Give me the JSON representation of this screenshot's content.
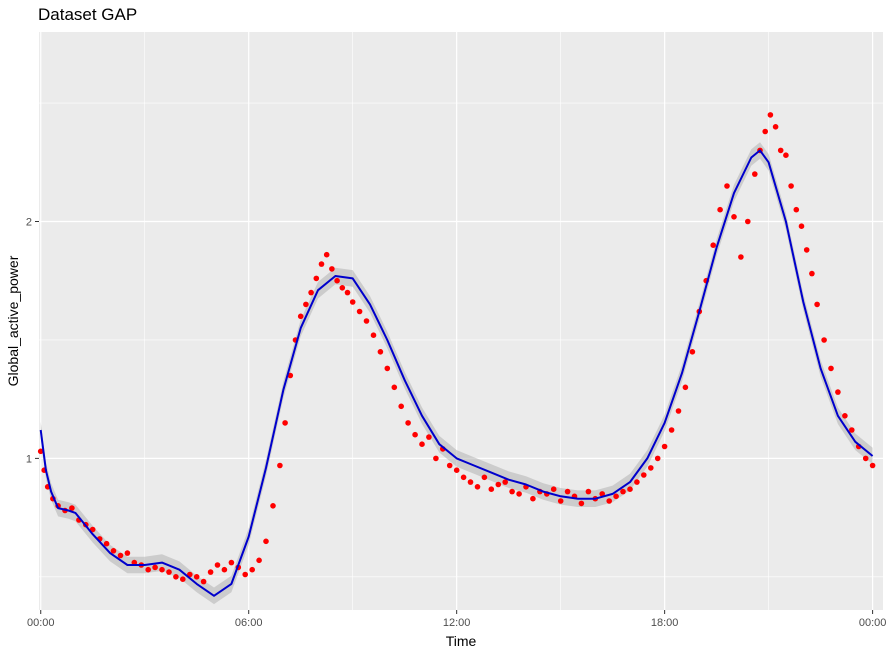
{
  "chart_data": {
    "type": "scatter",
    "title": "Dataset GAP",
    "xlabel": "Time",
    "ylabel": "Global_active_power",
    "xlim": [
      -0.05,
      24.3
    ],
    "ylim": [
      0.36,
      2.8
    ],
    "x_ticks": [
      {
        "value": 0,
        "label": "00:00"
      },
      {
        "value": 6,
        "label": "06:00"
      },
      {
        "value": 12,
        "label": "12:00"
      },
      {
        "value": 18,
        "label": "18:00"
      },
      {
        "value": 24,
        "label": "00:00"
      }
    ],
    "y_ticks": [
      {
        "value": 1,
        "label": "1"
      },
      {
        "value": 2,
        "label": "2"
      }
    ],
    "y_minor_grid": [
      0.5,
      1.5,
      2.5
    ],
    "grid": true,
    "colors": {
      "panel": "#ebebeb",
      "grid": "#ffffff",
      "points": "#ff0000",
      "smooth_line": "#0000cc",
      "ribbon": "#b3b3b3"
    },
    "series": [
      {
        "kind": "points",
        "x": [
          0.0,
          0.1,
          0.2,
          0.35,
          0.5,
          0.7,
          0.9,
          1.1,
          1.3,
          1.5,
          1.7,
          1.9,
          2.1,
          2.3,
          2.5,
          2.7,
          2.9,
          3.1,
          3.3,
          3.5,
          3.7,
          3.9,
          4.1,
          4.3,
          4.5,
          4.7,
          4.9,
          5.1,
          5.3,
          5.5,
          5.7,
          5.9,
          6.1,
          6.3,
          6.5,
          6.7,
          6.9,
          7.05,
          7.2,
          7.35,
          7.5,
          7.65,
          7.8,
          7.95,
          8.1,
          8.25,
          8.4,
          8.55,
          8.7,
          8.85,
          9.0,
          9.2,
          9.4,
          9.6,
          9.8,
          10.0,
          10.2,
          10.4,
          10.6,
          10.8,
          11.0,
          11.2,
          11.4,
          11.6,
          11.8,
          12.0,
          12.2,
          12.4,
          12.6,
          12.8,
          13.0,
          13.2,
          13.4,
          13.6,
          13.8,
          14.0,
          14.2,
          14.4,
          14.6,
          14.8,
          15.0,
          15.2,
          15.4,
          15.6,
          15.8,
          16.0,
          16.2,
          16.4,
          16.6,
          16.8,
          17.0,
          17.2,
          17.4,
          17.6,
          17.8,
          18.0,
          18.2,
          18.4,
          18.6,
          18.8,
          19.0,
          19.2,
          19.4,
          19.6,
          19.8,
          20.0,
          20.2,
          20.4,
          20.6,
          20.75,
          20.9,
          21.05,
          21.2,
          21.35,
          21.5,
          21.65,
          21.8,
          21.95,
          22.1,
          22.25,
          22.4,
          22.6,
          22.8,
          23.0,
          23.2,
          23.4,
          23.6,
          23.8,
          24.0
        ],
        "y": [
          1.03,
          0.95,
          0.88,
          0.83,
          0.8,
          0.78,
          0.79,
          0.74,
          0.72,
          0.7,
          0.66,
          0.64,
          0.61,
          0.59,
          0.6,
          0.56,
          0.55,
          0.53,
          0.54,
          0.53,
          0.52,
          0.5,
          0.49,
          0.51,
          0.5,
          0.48,
          0.52,
          0.55,
          0.53,
          0.56,
          0.54,
          0.51,
          0.53,
          0.57,
          0.65,
          0.8,
          0.97,
          1.15,
          1.35,
          1.5,
          1.6,
          1.65,
          1.7,
          1.76,
          1.82,
          1.86,
          1.8,
          1.75,
          1.72,
          1.7,
          1.66,
          1.62,
          1.58,
          1.52,
          1.45,
          1.38,
          1.3,
          1.22,
          1.15,
          1.1,
          1.06,
          1.09,
          1.0,
          1.04,
          0.97,
          0.95,
          0.92,
          0.9,
          0.88,
          0.92,
          0.87,
          0.89,
          0.9,
          0.86,
          0.85,
          0.88,
          0.83,
          0.86,
          0.85,
          0.87,
          0.82,
          0.86,
          0.84,
          0.81,
          0.86,
          0.83,
          0.85,
          0.82,
          0.84,
          0.86,
          0.87,
          0.9,
          0.93,
          0.96,
          1.0,
          1.05,
          1.12,
          1.2,
          1.3,
          1.45,
          1.62,
          1.75,
          1.9,
          2.05,
          2.15,
          2.02,
          1.85,
          2.0,
          2.2,
          2.3,
          2.38,
          2.45,
          2.4,
          2.3,
          2.28,
          2.15,
          2.05,
          1.98,
          1.88,
          1.78,
          1.65,
          1.5,
          1.38,
          1.28,
          1.18,
          1.12,
          1.05,
          1.0,
          0.97
        ]
      },
      {
        "kind": "smooth",
        "x": [
          0.0,
          0.15,
          0.3,
          0.5,
          0.8,
          1.0,
          1.5,
          2.0,
          2.5,
          3.0,
          3.5,
          4.0,
          4.5,
          5.0,
          5.5,
          6.0,
          6.5,
          7.0,
          7.5,
          8.0,
          8.5,
          9.0,
          9.5,
          10.0,
          10.5,
          11.0,
          11.5,
          12.0,
          12.5,
          13.0,
          13.5,
          14.0,
          14.5,
          15.0,
          15.5,
          16.0,
          16.5,
          17.0,
          17.5,
          18.0,
          18.5,
          19.0,
          19.5,
          20.0,
          20.5,
          20.75,
          21.0,
          21.5,
          22.0,
          22.5,
          23.0,
          23.5,
          24.0
        ],
        "y": [
          1.12,
          0.95,
          0.86,
          0.79,
          0.78,
          0.77,
          0.68,
          0.6,
          0.55,
          0.55,
          0.56,
          0.53,
          0.47,
          0.42,
          0.47,
          0.67,
          0.96,
          1.29,
          1.55,
          1.71,
          1.77,
          1.76,
          1.65,
          1.5,
          1.33,
          1.18,
          1.06,
          1.0,
          0.97,
          0.94,
          0.91,
          0.89,
          0.86,
          0.84,
          0.83,
          0.83,
          0.85,
          0.9,
          1.0,
          1.15,
          1.36,
          1.62,
          1.89,
          2.12,
          2.27,
          2.3,
          2.25,
          2.0,
          1.66,
          1.38,
          1.18,
          1.07,
          1.01
        ]
      }
    ]
  }
}
